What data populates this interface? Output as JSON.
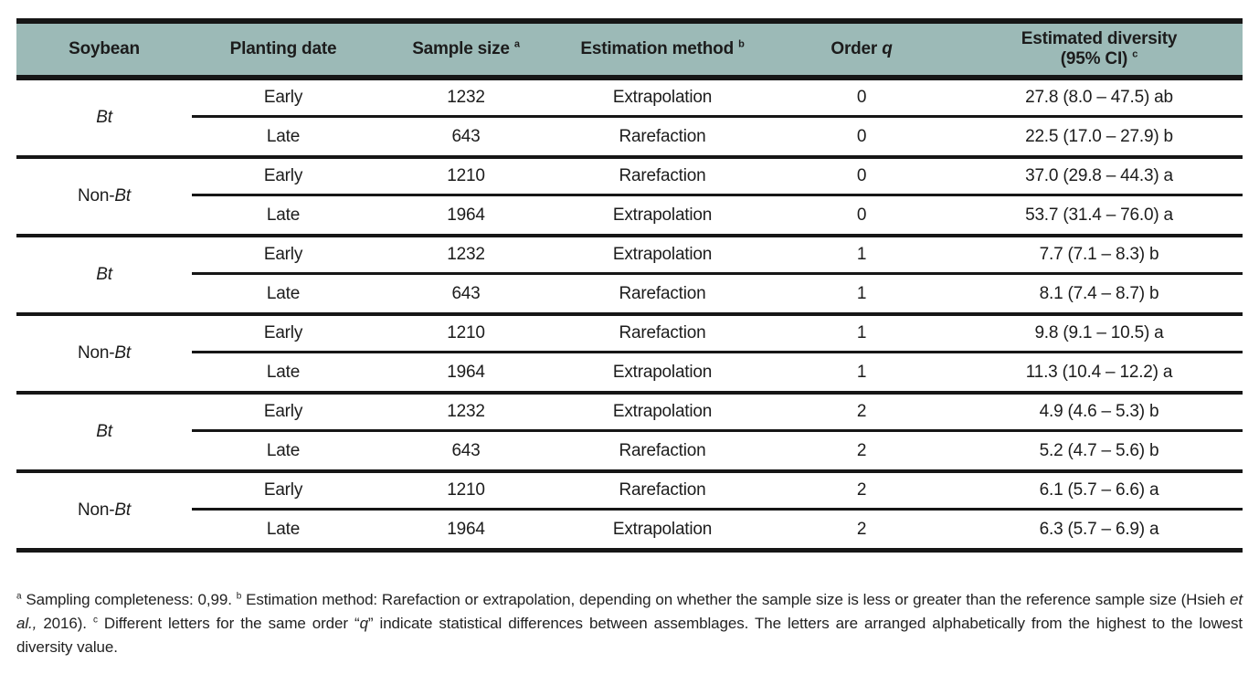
{
  "colors": {
    "header_bg": "#9cbab7",
    "rule_line": "#161616",
    "text": "#1c1c1c"
  },
  "header": {
    "soybean": "Soybean",
    "planting": "Planting date",
    "sample": "Sample size",
    "sample_sup": "a",
    "method": "Estimation method",
    "method_sup": "b",
    "order_label": "Order",
    "order_q": "q",
    "diversity_line1": "Estimated diversity",
    "diversity_line2": "(95% CI)",
    "diversity_sup": "c"
  },
  "groups": [
    {
      "soy_prefix": "",
      "soy_italic": "Bt",
      "rows": [
        {
          "planting": "Early",
          "sample": "1232",
          "method": "Extrapolation",
          "order": "0",
          "diversity": "27.8 (8.0 – 47.5) ab"
        },
        {
          "planting": "Late",
          "sample": "643",
          "method": "Rarefaction",
          "order": "0",
          "diversity": "22.5 (17.0 – 27.9) b"
        }
      ]
    },
    {
      "soy_prefix": "Non-",
      "soy_italic": "Bt",
      "rows": [
        {
          "planting": "Early",
          "sample": "1210",
          "method": "Rarefaction",
          "order": "0",
          "diversity": "37.0 (29.8 – 44.3) a"
        },
        {
          "planting": "Late",
          "sample": "1964",
          "method": "Extrapolation",
          "order": "0",
          "diversity": "53.7 (31.4 – 76.0) a"
        }
      ]
    },
    {
      "soy_prefix": "",
      "soy_italic": "Bt",
      "rows": [
        {
          "planting": "Early",
          "sample": "1232",
          "method": "Extrapolation",
          "order": "1",
          "diversity": "7.7 (7.1 – 8.3) b"
        },
        {
          "planting": "Late",
          "sample": "643",
          "method": "Rarefaction",
          "order": "1",
          "diversity": "8.1 (7.4 – 8.7) b"
        }
      ]
    },
    {
      "soy_prefix": "Non-",
      "soy_italic": "Bt",
      "rows": [
        {
          "planting": "Early",
          "sample": "1210",
          "method": "Rarefaction",
          "order": "1",
          "diversity": "9.8 (9.1 – 10.5) a"
        },
        {
          "planting": "Late",
          "sample": "1964",
          "method": "Extrapolation",
          "order": "1",
          "diversity": "11.3 (10.4 – 12.2) a"
        }
      ]
    },
    {
      "soy_prefix": "",
      "soy_italic": "Bt",
      "rows": [
        {
          "planting": "Early",
          "sample": "1232",
          "method": "Extrapolation",
          "order": "2",
          "diversity": "4.9 (4.6 – 5.3) b"
        },
        {
          "planting": "Late",
          "sample": "643",
          "method": "Rarefaction",
          "order": "2",
          "diversity": "5.2 (4.7 – 5.6) b"
        }
      ]
    },
    {
      "soy_prefix": "Non-",
      "soy_italic": "Bt",
      "rows": [
        {
          "planting": "Early",
          "sample": "1210",
          "method": "Rarefaction",
          "order": "2",
          "diversity": "6.1 (5.7 – 6.6) a"
        },
        {
          "planting": "Late",
          "sample": "1964",
          "method": "Extrapolation",
          "order": "2",
          "diversity": "6.3 (5.7 – 6.9) a"
        }
      ]
    }
  ],
  "footnote": {
    "sup_a": "a",
    "part1": "Sampling completeness: 0,99.",
    "sup_b": "b",
    "part2": "Estimation method: Rarefaction or extrapolation, depending on whether the sample size is less or greater than the reference sample size (Hsieh ",
    "etal": "et al.,",
    "part3": " 2016).",
    "sup_c": "c",
    "part4": "Different letters for the same order “",
    "q_italic": "q",
    "part5": "” indicate statistical differences between assemblages. The letters are arranged alphabetically from the highest to the lowest diversity value."
  }
}
